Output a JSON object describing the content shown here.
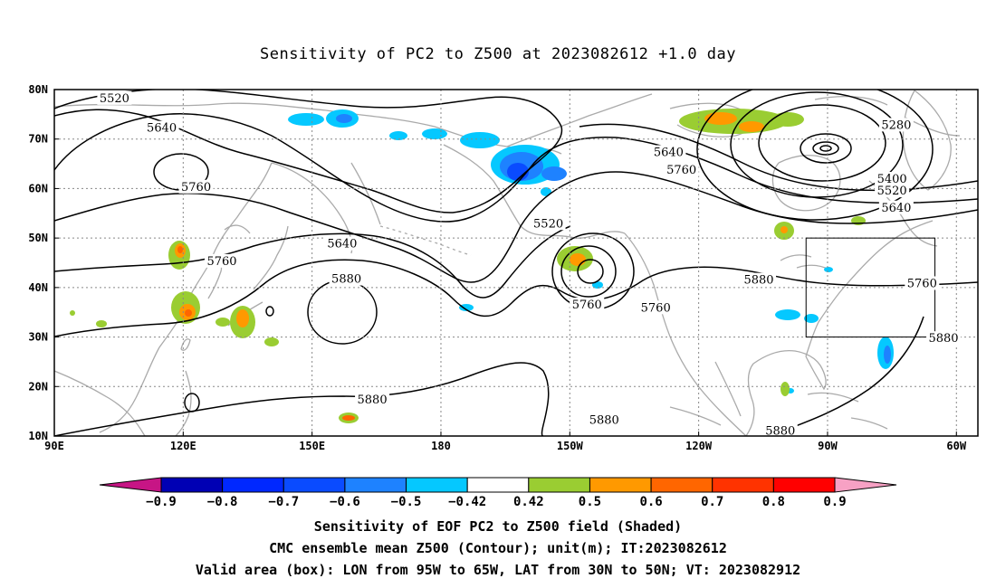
{
  "title": "Sensitivity of PC2 to Z500 at 2023082612 +1.0 day",
  "map": {
    "projection": "cylindrical-equidistant",
    "lon_range": [
      90,
      305
    ],
    "lat_range": [
      10,
      80
    ],
    "grid_lines": "dotted",
    "coastline_color": "#aaaaaa",
    "lat_labels": [
      {
        "lat": 80,
        "text": "80N"
      },
      {
        "lat": 70,
        "text": "70N"
      },
      {
        "lat": 60,
        "text": "60N"
      },
      {
        "lat": 50,
        "text": "50N"
      },
      {
        "lat": 40,
        "text": "40N"
      },
      {
        "lat": 30,
        "text": "30N"
      },
      {
        "lat": 20,
        "text": "20N"
      },
      {
        "lat": 10,
        "text": "10N"
      }
    ],
    "lon_labels": [
      {
        "lon": 90,
        "text": "90E"
      },
      {
        "lon": 120,
        "text": "120E"
      },
      {
        "lon": 150,
        "text": "150E"
      },
      {
        "lon": 180,
        "text": "180"
      },
      {
        "lon": 210,
        "text": "150W"
      },
      {
        "lon": 240,
        "text": "120W"
      },
      {
        "lon": 270,
        "text": "90W"
      },
      {
        "lon": 300,
        "text": "60W"
      }
    ],
    "valid_box": {
      "lon_min": 265,
      "lon_max": 295,
      "lat_min": 30,
      "lat_max": 50
    },
    "contour_labels": [
      {
        "text": "5520",
        "lon": 104,
        "lat": 78.2
      },
      {
        "text": "5640",
        "lon": 115,
        "lat": 72.2
      },
      {
        "text": "5760",
        "lon": 123,
        "lat": 60.3
      },
      {
        "text": "5640",
        "lon": 157,
        "lat": 48.8
      },
      {
        "text": "5760",
        "lon": 129,
        "lat": 45.3
      },
      {
        "text": "5880",
        "lon": 158,
        "lat": 41.7
      },
      {
        "text": "5520",
        "lon": 205,
        "lat": 52.9
      },
      {
        "text": "5640",
        "lon": 233,
        "lat": 67.3
      },
      {
        "text": "5760",
        "lon": 236,
        "lat": 63.7
      },
      {
        "text": "5760",
        "lon": 214,
        "lat": 36.5
      },
      {
        "text": "5760",
        "lon": 230,
        "lat": 35.9
      },
      {
        "text": "5880",
        "lon": 254,
        "lat": 41.5
      },
      {
        "text": "5880",
        "lon": 164,
        "lat": 17.3
      },
      {
        "text": "5880",
        "lon": 218,
        "lat": 13.2
      },
      {
        "text": "5880",
        "lon": 259,
        "lat": 11.0
      },
      {
        "text": "5280",
        "lon": 286,
        "lat": 72.8
      },
      {
        "text": "5400",
        "lon": 285,
        "lat": 61.9
      },
      {
        "text": "5520",
        "lon": 285,
        "lat": 59.5
      },
      {
        "text": "5640",
        "lon": 286,
        "lat": 56.1
      },
      {
        "text": "5760",
        "lon": 292,
        "lat": 40.8
      },
      {
        "text": "5880",
        "lon": 297,
        "lat": 29.7
      }
    ]
  },
  "colorbar": {
    "colors": [
      "#c71585",
      "#0000b4",
      "#0028ff",
      "#0a4bff",
      "#1e82ff",
      "#05c8ff",
      "#ffffff",
      "#9acd32",
      "#ff9900",
      "#ff6600",
      "#ff3300",
      "#ff0000",
      "#f7a1c4"
    ],
    "labels": [
      "−0.9",
      "−0.8",
      "−0.7",
      "−0.6",
      "−0.5",
      "−0.42",
      "0.42",
      "0.5",
      "0.6",
      "0.7",
      "0.8",
      "0.9"
    ]
  },
  "caption": {
    "line1": "Sensitivity of EOF PC2 to Z500 field (Shaded)",
    "line2": "CMC ensemble mean Z500 (Contour); unit(m); IT:2023082612",
    "line3": "Valid area (box): LON from 95W to 65W, LAT from 30N to 50N; VT: 2023082912"
  }
}
